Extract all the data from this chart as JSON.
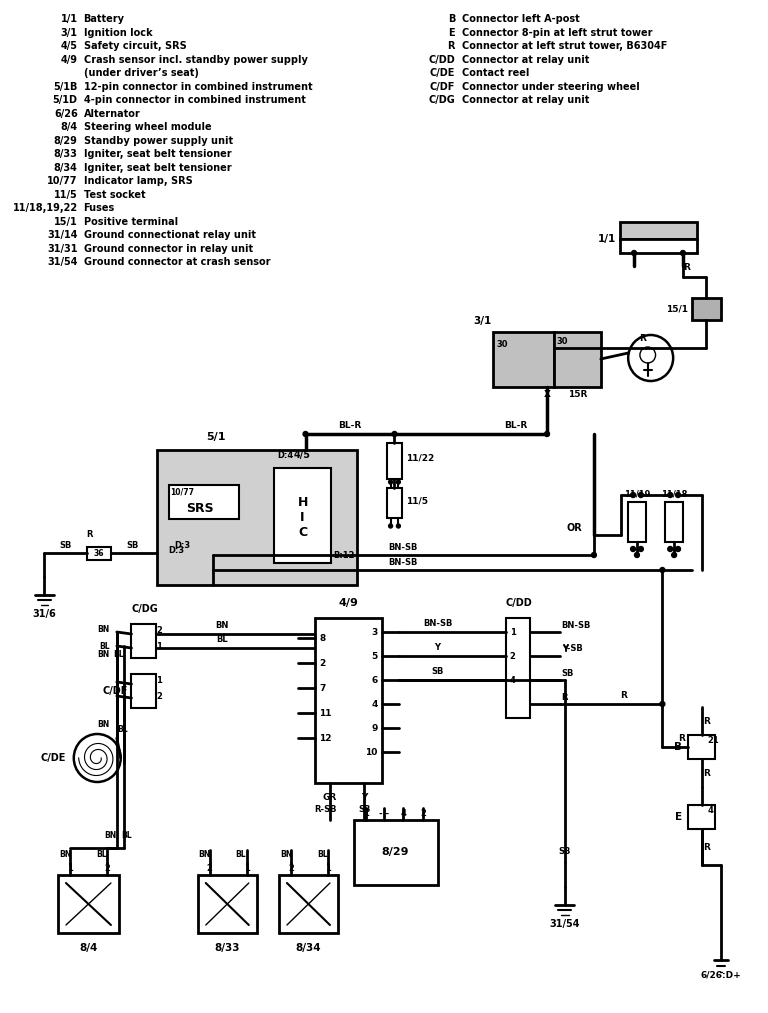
{
  "bg_color": "#ffffff",
  "line_color": "#000000",
  "legend_left": [
    [
      "1/1",
      "Battery"
    ],
    [
      "3/1",
      "Ignition lock"
    ],
    [
      "4/5",
      "Safety circuit, SRS"
    ],
    [
      "4/9",
      "Crash sensor incl. standby power supply"
    ],
    [
      "",
      "(under driver’s seat)"
    ],
    [
      "5/1B",
      "12-pin connector in combined instrument"
    ],
    [
      "5/1D",
      "4-pin connector in combined instrument"
    ],
    [
      "6/26",
      "Alternator"
    ],
    [
      "8/4",
      "Steering wheel module"
    ],
    [
      "8/29",
      "Standby power supply unit"
    ],
    [
      "8/33",
      "Igniter, seat belt tensioner"
    ],
    [
      "8/34",
      "Igniter, seat belt tensioner"
    ],
    [
      "10/77",
      "Indicator lamp, SRS"
    ],
    [
      "11/5",
      "Test socket"
    ],
    [
      "11/18,19,22",
      "Fuses"
    ],
    [
      "15/1",
      "Positive terminal"
    ],
    [
      "31/14",
      "Ground connectionat relay unit"
    ],
    [
      "31/31",
      "Ground connector in relay unit"
    ],
    [
      "31/54",
      "Ground connector at crash sensor"
    ]
  ],
  "legend_right": [
    [
      "B",
      "Connector left A-post"
    ],
    [
      "E",
      "Connector 8-pin at left strut tower"
    ],
    [
      "R",
      "Connector at left strut tower, B6304F"
    ],
    [
      "C/DD",
      "Connector at relay unit"
    ],
    [
      "C/DE",
      "Contact reel"
    ],
    [
      "C/DF",
      "Connector under steering wheel"
    ],
    [
      "C/DG",
      "Connector at relay unit"
    ]
  ]
}
